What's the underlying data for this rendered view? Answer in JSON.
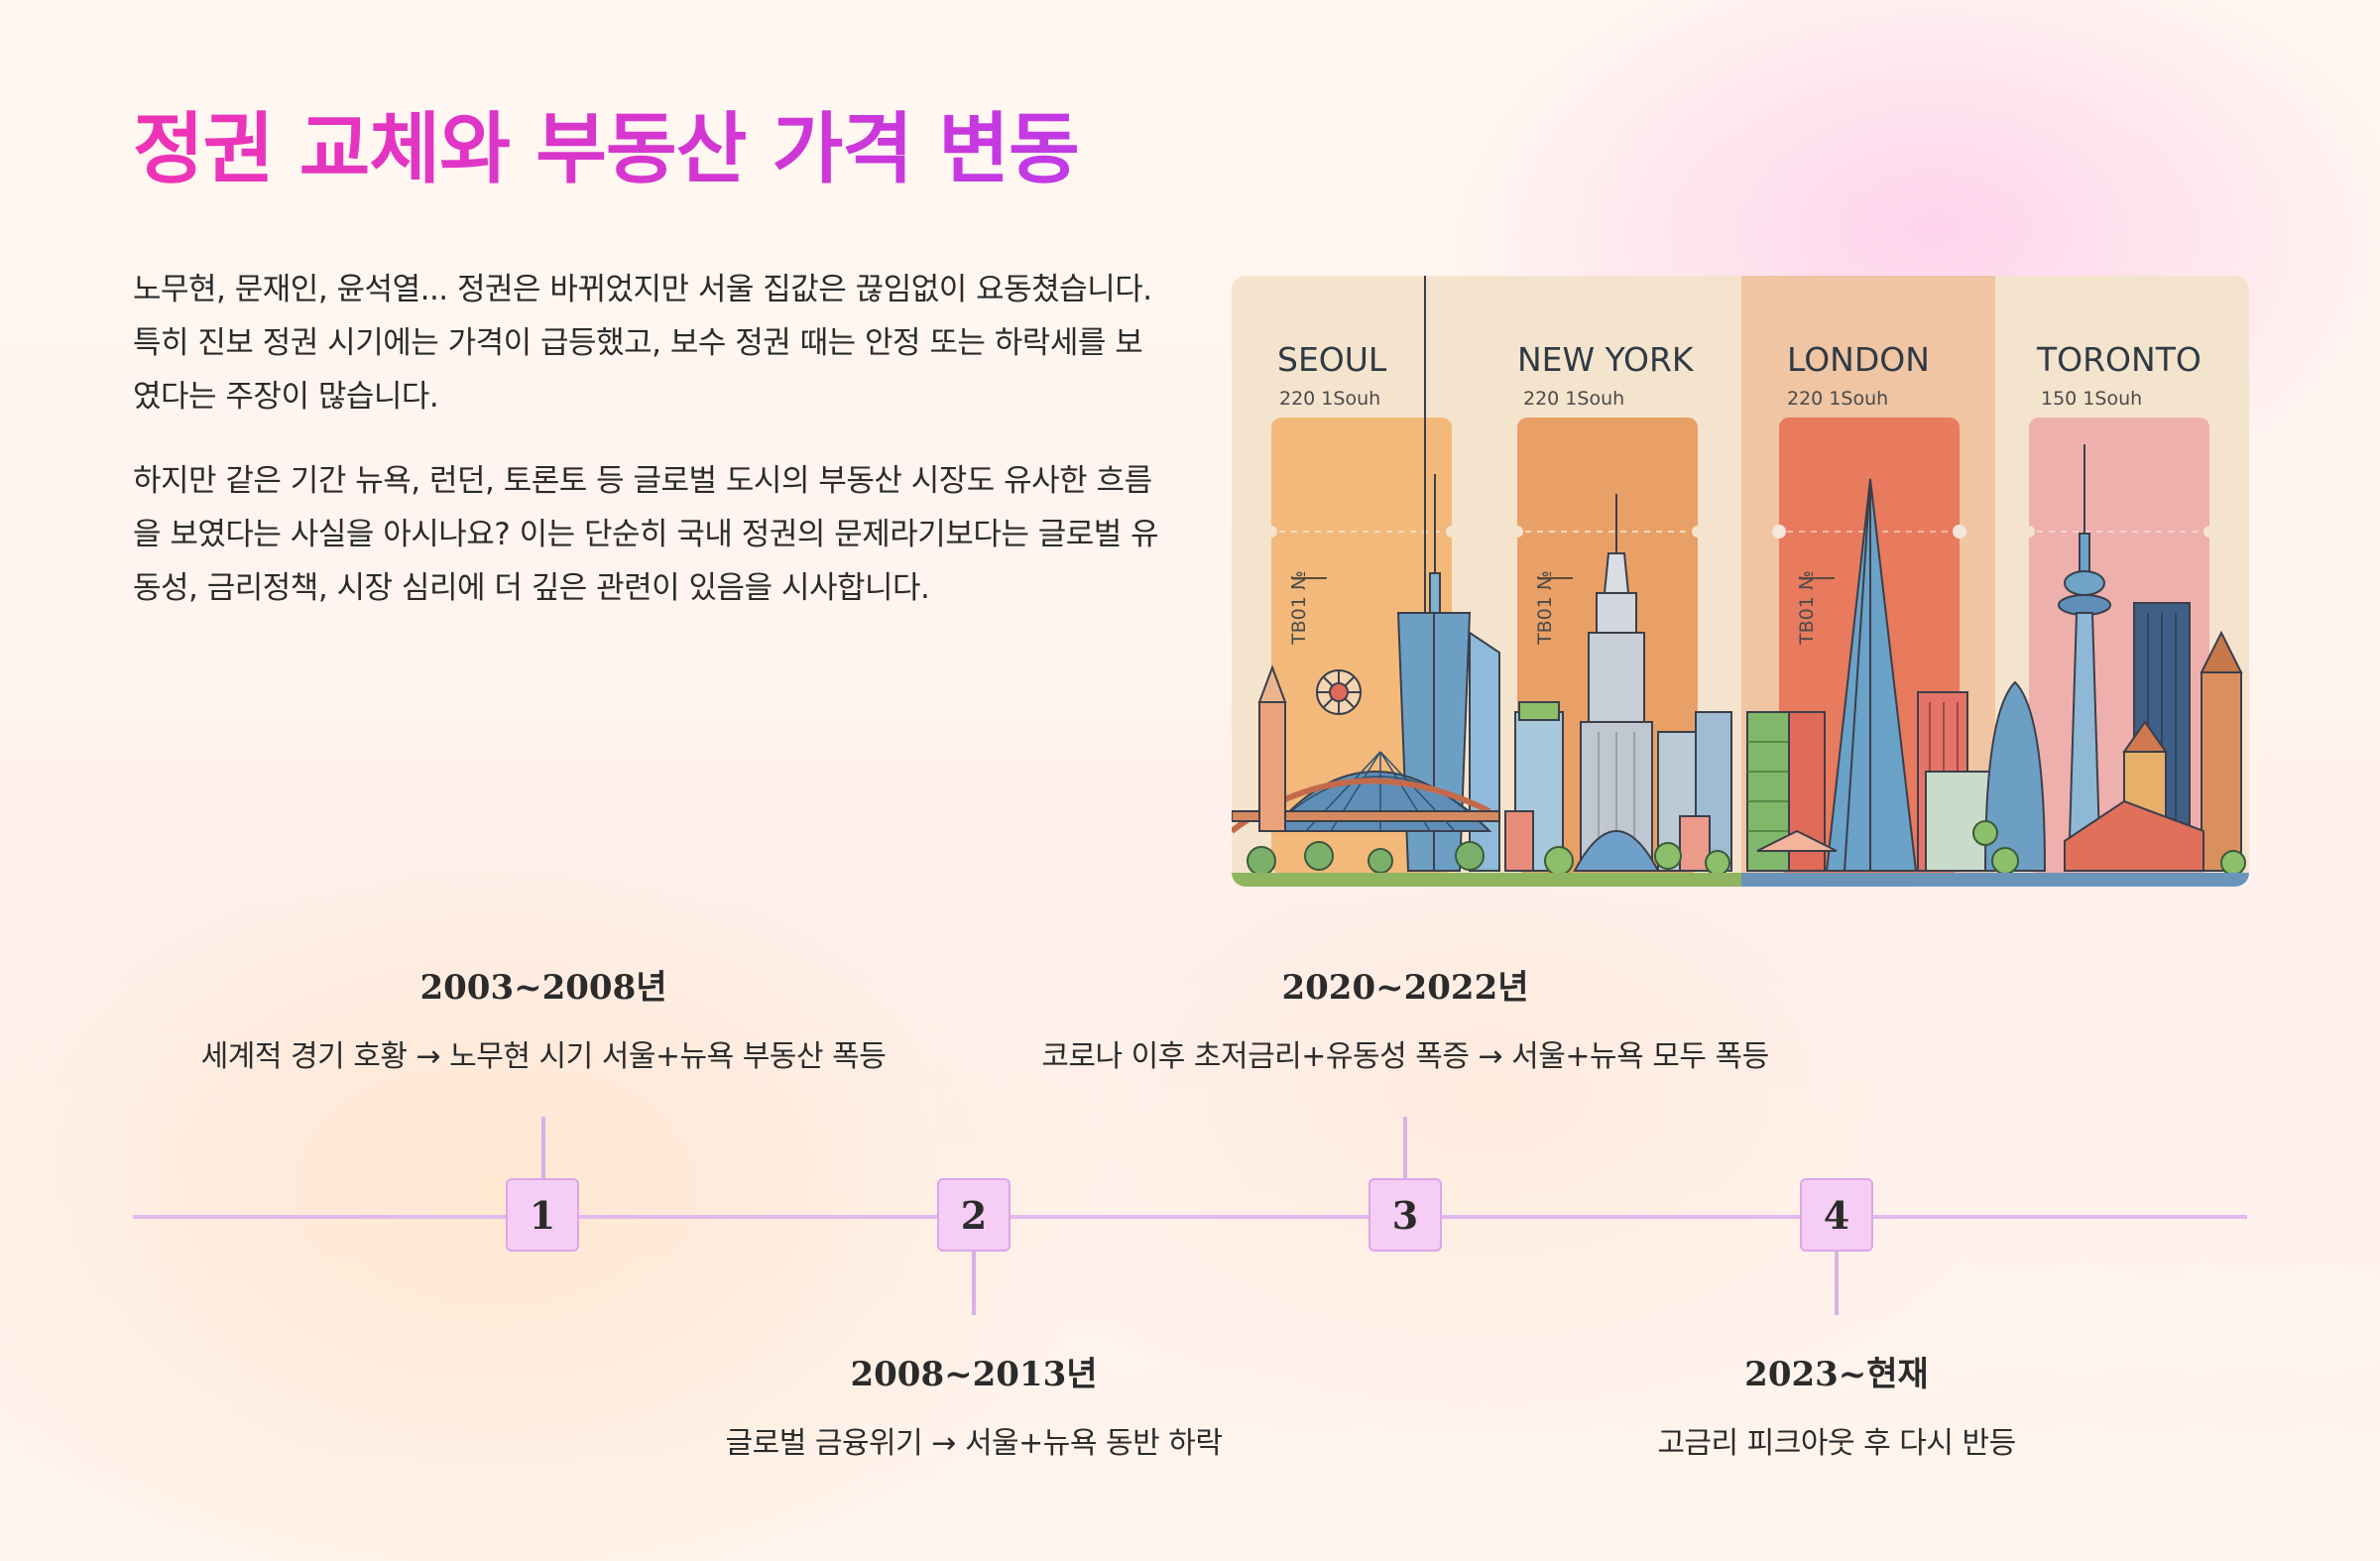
{
  "title": "정권 교체와 부동산 가격 변동",
  "paragraphs": [
    "노무현, 문재인, 윤석열... 정권은 바뀌었지만 서울 집값은 끊임없이 요동쳤습니다. 특히 진보 정권 시기에는 가격이 급등했고, 보수 정권 때는 안정 또는 하락세를 보였다는 주장이 많습니다.",
    "하지만 같은 기간 뉴욕, 런던, 토론토 등 글로벌 도시의 부동산 시장도 유사한 흐름을 보였다는 사실을 아시나요? 이는 단순히 국내 정권의 문제라기보다는 글로벌 유동성, 금리정책, 시장 심리에 더 깊은 관련이 있음을 시사합니다."
  ],
  "illustration": {
    "cities": [
      {
        "name": "SEOUL",
        "sub": "220 1Souh",
        "ticket": "TB01 №",
        "panel_color": "#f5e4cd",
        "card_color": "#f2b97a"
      },
      {
        "name": "NEW YORK",
        "sub": "220 1Souh",
        "ticket": "TB01 №",
        "panel_color": "#f5e4cd",
        "card_color": "#e9a066"
      },
      {
        "name": "LONDON",
        "sub": "220 1Souh",
        "ticket": "TB01 №",
        "panel_color": "#efc5a4",
        "card_color": "#e87a5e"
      },
      {
        "name": "TORONTO",
        "sub": "150 1Souh",
        "ticket": "",
        "panel_color": "#f5e4cd",
        "card_color": "#eeb0ad"
      }
    ]
  },
  "timeline": {
    "line_color": "#e2b9ec",
    "node_color": "#f6cdf4",
    "events": [
      {
        "number": "1",
        "year": "2003~2008년",
        "desc": "세계적 경기 호황 → 노무현 시기 서울+뉴욕 부동산 폭등",
        "position": "above"
      },
      {
        "number": "2",
        "year": "2008~2013년",
        "desc": "글로벌 금융위기 → 서울+뉴욕 동반 하락",
        "position": "below"
      },
      {
        "number": "3",
        "year": "2020~2022년",
        "desc": "코로나 이후 초저금리+유동성 폭증 → 서울+뉴욕 모두 폭등",
        "position": "above"
      },
      {
        "number": "4",
        "year": "2023~현재",
        "desc": "고금리 피크아웃 후 다시 반등",
        "position": "below"
      }
    ]
  }
}
